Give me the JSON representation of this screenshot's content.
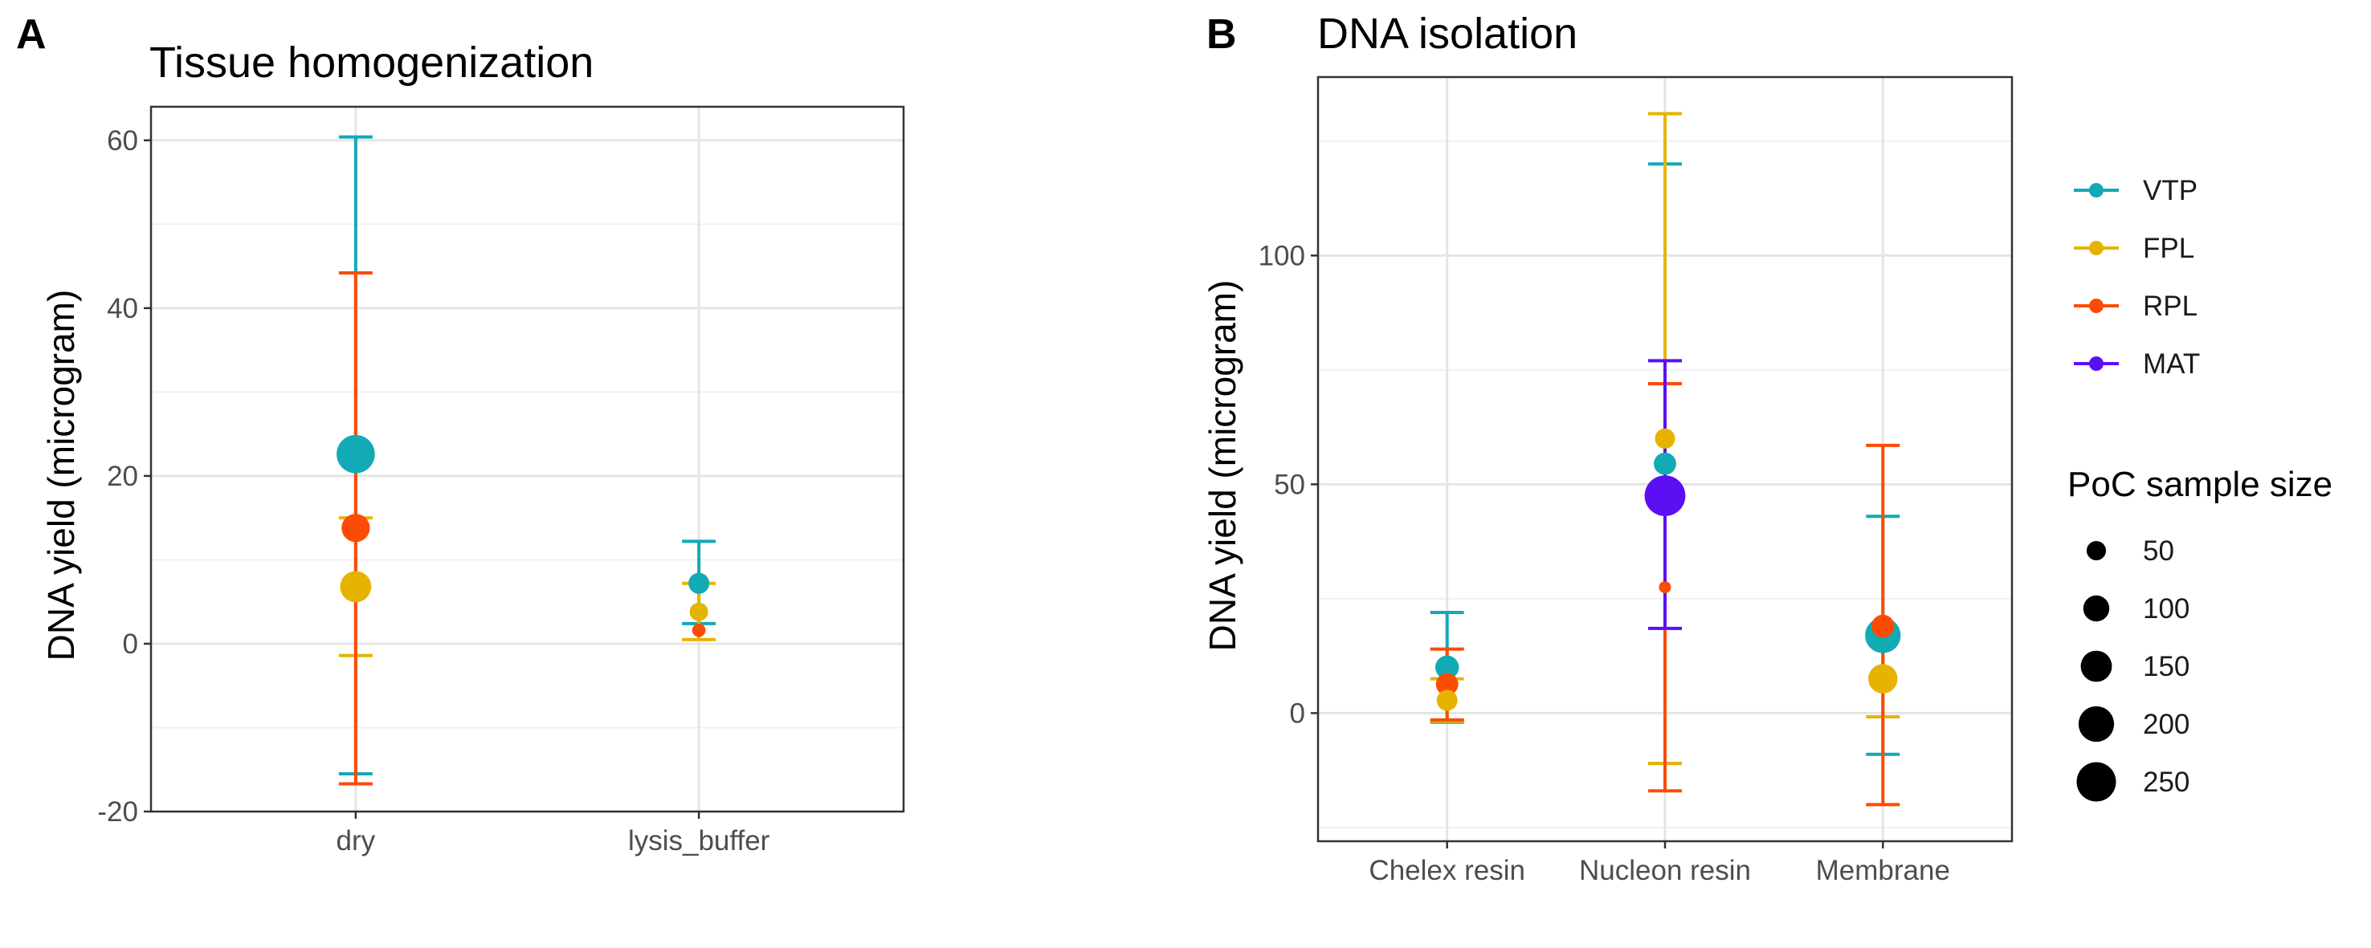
{
  "colors": {
    "VTP": "#12aab5",
    "FPL": "#e6b400",
    "RPL": "#fb4c06",
    "MAT": "#5b0ff2"
  },
  "legend": {
    "entries": [
      "VTP",
      "FPL",
      "RPL",
      "MAT"
    ],
    "size_title": "PoC sample size",
    "size_breaks": [
      50,
      100,
      150,
      200,
      250
    ]
  },
  "chart_data": [
    {
      "type": "scatter",
      "panel": "A",
      "title": "Tissue homogenization",
      "xlabel": "",
      "ylabel": "DNA yield (microgram)",
      "categories": [
        "dry",
        "lysis_buffer"
      ],
      "ylim": [
        -20,
        64
      ],
      "yticks": [
        -20,
        0,
        20,
        40,
        60
      ],
      "grid": true,
      "series": [
        {
          "name": "VTP",
          "points": [
            {
              "x": "dry",
              "y": 22.6,
              "low": -15.5,
              "high": 60.4,
              "n": 235
            },
            {
              "x": "lysis_buffer",
              "y": 7.2,
              "low": 2.4,
              "high": 12.2,
              "n": 60
            }
          ]
        },
        {
          "name": "FPL",
          "points": [
            {
              "x": "dry",
              "y": 6.8,
              "low": -1.4,
              "high": 15.0,
              "n": 150
            },
            {
              "x": "lysis_buffer",
              "y": 3.8,
              "low": 0.5,
              "high": 7.2,
              "n": 45
            }
          ]
        },
        {
          "name": "RPL",
          "points": [
            {
              "x": "dry",
              "y": 13.8,
              "low": -16.7,
              "high": 44.2,
              "n": 120
            },
            {
              "x": "lysis_buffer",
              "y": 1.6,
              "low": 1.6,
              "high": 1.6,
              "n": 20
            }
          ]
        }
      ]
    },
    {
      "type": "scatter",
      "panel": "B",
      "title": "DNA isolation",
      "xlabel": "",
      "ylabel": "DNA yield (microgram)",
      "categories": [
        "Chelex resin",
        "Nucleon resin",
        "Membrane"
      ],
      "ylim": [
        -28,
        139
      ],
      "yticks": [
        0,
        50,
        100
      ],
      "grid": true,
      "series": [
        {
          "name": "VTP",
          "points": [
            {
              "x": "Chelex resin",
              "y": 10.0,
              "low": -2.0,
              "high": 22.0,
              "n": 80
            },
            {
              "x": "Nucleon resin",
              "y": 54.5,
              "low": -11.0,
              "high": 120.0,
              "n": 70
            },
            {
              "x": "Membrane",
              "y": 17.0,
              "low": -9.0,
              "high": 43.0,
              "n": 200
            }
          ]
        },
        {
          "name": "FPL",
          "points": [
            {
              "x": "Chelex resin",
              "y": 2.8,
              "low": -1.8,
              "high": 7.5,
              "n": 60
            },
            {
              "x": "Nucleon resin",
              "y": 60.0,
              "low": -11.0,
              "high": 131.0,
              "n": 55
            },
            {
              "x": "Membrane",
              "y": 7.5,
              "low": -0.8,
              "high": 15.8,
              "n": 130
            }
          ]
        },
        {
          "name": "RPL",
          "points": [
            {
              "x": "Chelex resin",
              "y": 6.3,
              "low": -1.5,
              "high": 14.0,
              "n": 70
            },
            {
              "x": "Nucleon resin",
              "y": 27.5,
              "low": -17.0,
              "high": 72.0,
              "n": 15
            },
            {
              "x": "Membrane",
              "y": 19.0,
              "low": -20.0,
              "high": 58.5,
              "n": 75
            }
          ]
        },
        {
          "name": "MAT",
          "points": [
            {
              "x": "Nucleon resin",
              "y": 47.5,
              "low": 18.5,
              "high": 77.0,
              "n": 270
            }
          ]
        }
      ]
    }
  ]
}
